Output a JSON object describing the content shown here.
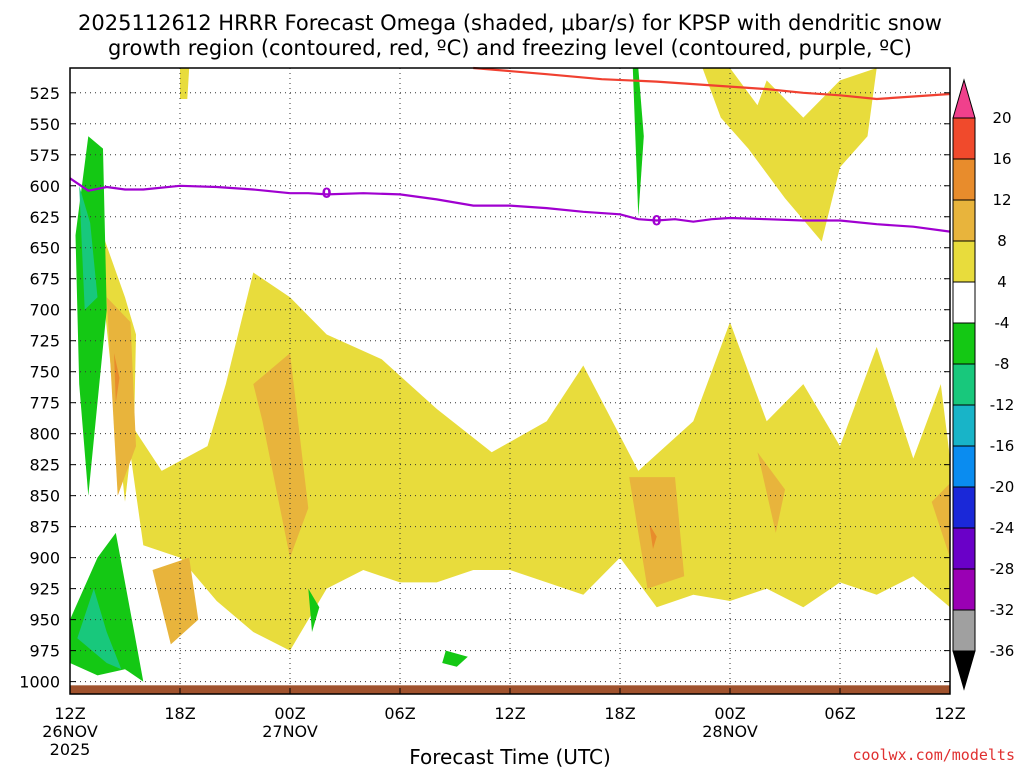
{
  "chart_data": {
    "type": "contour",
    "title_line1": "2025112612 HRRR Forecast Omega (shaded, μbar/s) for KPSP with dendritic snow",
    "title_line2": "growth region (contoured, red, ºC) and freezing level (contoured, purple, ºC)",
    "xlabel": "Forecast Time (UTC)",
    "credit": "coolwx.com/modelts",
    "x_range": [
      0,
      48
    ],
    "y_range": [
      505,
      1010
    ],
    "y_ticks": [
      525,
      550,
      575,
      600,
      625,
      650,
      675,
      700,
      725,
      750,
      775,
      800,
      825,
      850,
      875,
      900,
      925,
      950,
      975,
      1000
    ],
    "x_ticks": [
      {
        "hour": 0,
        "lines": [
          "12Z",
          "26NOV",
          "2025"
        ]
      },
      {
        "hour": 6,
        "lines": [
          "18Z"
        ]
      },
      {
        "hour": 12,
        "lines": [
          "00Z",
          "27NOV"
        ]
      },
      {
        "hour": 18,
        "lines": [
          "06Z"
        ]
      },
      {
        "hour": 24,
        "lines": [
          "12Z"
        ]
      },
      {
        "hour": 30,
        "lines": [
          "18Z"
        ]
      },
      {
        "hour": 36,
        "lines": [
          "00Z",
          "28NOV"
        ]
      },
      {
        "hour": 42,
        "lines": [
          "06Z"
        ]
      },
      {
        "hour": 48,
        "lines": [
          "12Z"
        ]
      }
    ],
    "colorbar": {
      "levels": [
        -36,
        -32,
        -28,
        -24,
        -20,
        -16,
        -12,
        -8,
        -4,
        4,
        8,
        12,
        16,
        20
      ],
      "colors": [
        "#000000",
        "#a0a0a0",
        "#9a00b4",
        "#6a00c8",
        "#1a28d8",
        "#0a8cf0",
        "#18b4c8",
        "#18c87c",
        "#14c814",
        "#ffffff",
        "#e8dc3c",
        "#e8b43c",
        "#e88c2c",
        "#f04a2c",
        "#f0408c"
      ]
    },
    "freezing_level": {
      "label": "0",
      "hours": [
        0,
        1,
        2,
        3,
        4,
        6,
        8,
        10,
        12,
        13,
        14,
        16,
        18,
        20,
        22,
        24,
        26,
        28,
        30,
        31,
        32,
        33,
        34,
        35,
        36,
        38,
        40,
        42,
        44,
        46,
        48
      ],
      "pressure": [
        594,
        604,
        601,
        603,
        603,
        600,
        601,
        603,
        606,
        606,
        607,
        606,
        607,
        611,
        616,
        616,
        618,
        621,
        623,
        627,
        628,
        627,
        629,
        627,
        626,
        627,
        628,
        628,
        631,
        633,
        637
      ]
    },
    "dgz_line": {
      "hours": [
        22,
        26,
        29,
        32,
        35,
        38,
        40,
        42,
        44,
        46,
        48
      ],
      "pressure": [
        505,
        510,
        514,
        516,
        519,
        522,
        525,
        527,
        530,
        528,
        526
      ]
    },
    "positive_omega_regions": [
      {
        "level": 4,
        "hours": [
          1.8,
          3.0,
          3.6,
          3.5,
          3.0,
          1.9
        ],
        "pressure": [
          640,
          690,
          720,
          790,
          855,
          700
        ]
      },
      {
        "level": 4,
        "hours": [
          3.0,
          5.0,
          7.5,
          9.0,
          8.5,
          10.0,
          12.0,
          14.0,
          17.0,
          20.0,
          23.0,
          26.0,
          28.0,
          31.0,
          34.0,
          36.0,
          38.0,
          40.0,
          42.0,
          44.0,
          46.0,
          47.5,
          48.0,
          48.0,
          46.0,
          44.0,
          42.0,
          40.0,
          38.0,
          36.0,
          34.0,
          32.0,
          30.0,
          28.0,
          26.0,
          24.0,
          22.0,
          20.0,
          18.0,
          16.0,
          14.0,
          12.0,
          10.0,
          8.0,
          6.0,
          4.0
        ],
        "pressure": [
          785,
          830,
          810,
          735,
          760,
          670,
          690,
          720,
          740,
          780,
          815,
          790,
          745,
          830,
          790,
          710,
          790,
          760,
          810,
          730,
          820,
          760,
          820,
          940,
          915,
          930,
          920,
          940,
          925,
          935,
          930,
          940,
          900,
          930,
          920,
          910,
          910,
          920,
          920,
          910,
          925,
          975,
          960,
          935,
          900,
          890
        ]
      },
      {
        "level": 8,
        "hours": [
          2.0,
          3.3,
          3.6,
          2.6
        ],
        "pressure": [
          690,
          710,
          810,
          850
        ]
      },
      {
        "level": 8,
        "hours": [
          10.0,
          12.0,
          13.0,
          12.0,
          10.5
        ],
        "pressure": [
          760,
          735,
          860,
          900,
          790
        ]
      },
      {
        "level": 8,
        "hours": [
          4.5,
          6.5,
          7.0,
          5.5
        ],
        "pressure": [
          910,
          900,
          950,
          970
        ]
      },
      {
        "level": 8,
        "hours": [
          30.5,
          33.0,
          33.5,
          31.5
        ],
        "pressure": [
          835,
          835,
          915,
          925
        ]
      },
      {
        "level": 8,
        "hours": [
          37.5,
          39.0,
          38.5
        ],
        "pressure": [
          815,
          845,
          880
        ]
      },
      {
        "level": 8,
        "hours": [
          47.0,
          48.0,
          48.0
        ],
        "pressure": [
          855,
          840,
          900
        ]
      },
      {
        "level": 12,
        "hours": [
          2.4,
          2.7,
          2.5
        ],
        "pressure": [
          735,
          755,
          775
        ]
      },
      {
        "level": 12,
        "hours": [
          31.6,
          32.0,
          31.8
        ],
        "pressure": [
          873,
          883,
          893
        ]
      }
    ],
    "upper_positive_regions": [
      {
        "level": 4,
        "hours": [
          6.0,
          6.5,
          6.4,
          6.0
        ],
        "pressure": [
          505,
          505,
          530,
          530
        ]
      },
      {
        "level": 4,
        "hours": [
          34.5,
          36.0,
          37.5,
          38.0,
          40.0,
          42.0,
          44.0,
          43.5,
          42.0,
          41.0,
          39.0,
          37.0,
          35.5
        ],
        "pressure": [
          505,
          505,
          535,
          515,
          545,
          515,
          505,
          560,
          585,
          645,
          610,
          570,
          545
        ]
      }
    ],
    "negative_omega_regions": [
      {
        "level": -4,
        "hours": [
          0.3,
          1.0,
          1.8,
          2.0,
          1.6,
          1.0,
          0.5
        ],
        "pressure": [
          640,
          560,
          570,
          700,
          760,
          850,
          760
        ]
      },
      {
        "level": -8,
        "hours": [
          0.5,
          1.1,
          1.5,
          0.8
        ],
        "pressure": [
          600,
          630,
          690,
          700
        ]
      },
      {
        "level": -4,
        "hours": [
          0.0,
          1.5,
          2.5,
          3.5,
          4.0,
          3.0,
          1.5,
          0.0
        ],
        "pressure": [
          950,
          900,
          880,
          960,
          1000,
          990,
          995,
          985
        ]
      },
      {
        "level": -8,
        "hours": [
          0.4,
          1.3,
          2.0,
          2.8,
          2.0
        ],
        "pressure": [
          965,
          925,
          960,
          990,
          985
        ]
      },
      {
        "level": -4,
        "hours": [
          30.7,
          31.0,
          31.3,
          31.0
        ],
        "pressure": [
          505,
          505,
          560,
          625
        ]
      },
      {
        "level": -4,
        "hours": [
          13.0,
          13.6,
          13.2
        ],
        "pressure": [
          925,
          940,
          960
        ]
      },
      {
        "level": -4,
        "hours": [
          20.5,
          21.7,
          21.1,
          20.3
        ],
        "pressure": [
          975,
          980,
          988,
          985
        ]
      }
    ]
  }
}
